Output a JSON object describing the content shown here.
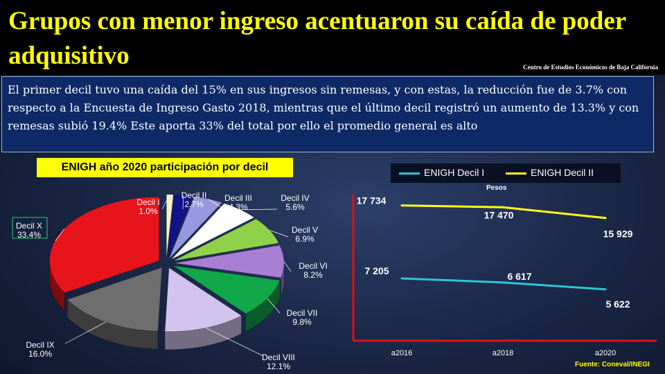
{
  "slide": {
    "title": "Grupos con menor ingreso acentuaron su caída de poder adquisitivo",
    "organization": "Centro de Estudios  Económicos  de  Baja California",
    "summary": "El primer decil tuvo una caída del 15% en sus ingresos sin remesas, y con estas, la reducción fue de 3.7% con respecto a la Encuesta de Ingreso Gasto 2018, mientras que el último decil registró un aumento de 13.3% y con remesas subió 19.4% Este aporta 33% del total por ello el promedio general es alto",
    "source": "Fuente:  Coneval/INEGI"
  },
  "chart_data": [
    {
      "type": "pie",
      "title": "ENIGH año 2020 participación por decil",
      "categories": [
        "Decil I",
        "Decil II",
        "Decil III",
        "Decil IV",
        "Decil V",
        "Decil VI",
        "Decil VII",
        "Decil VIII",
        "Decil IX",
        "Decil X"
      ],
      "values": [
        1.0,
        2.7,
        4.3,
        5.6,
        6.9,
        8.2,
        9.8,
        12.1,
        16.0,
        33.4
      ],
      "value_labels": [
        "1.0%",
        "2.7%",
        "4.3%",
        "5.6%",
        "6.9%",
        "8.2%",
        "9.8%",
        "12.1%",
        "16.0%",
        "33.4%"
      ],
      "colors": [
        "#f4f0c8",
        "#12128a",
        "#9898e0",
        "#ffffff",
        "#8fd24a",
        "#a97fd6",
        "#11a84a",
        "#d2c4ee",
        "#6e6e6e",
        "#e8141c"
      ],
      "exploded": true,
      "three_d": true
    },
    {
      "type": "line",
      "ylabel": "Pesos",
      "categories": [
        "a2016",
        "a2018",
        "a2020"
      ],
      "series": [
        {
          "name": "ENIGH Decil I",
          "values": [
            7205,
            6617,
            5622
          ],
          "value_labels": [
            "7 205",
            "6 617",
            "5 622"
          ],
          "color": "#2ec6d0"
        },
        {
          "name": "ENIGH Decil II",
          "values": [
            17734,
            17470,
            15929
          ],
          "value_labels": [
            "17 734",
            "17 470",
            "15 929"
          ],
          "color": "#ffff1a"
        }
      ],
      "axis_color": "#e01010",
      "grid": false,
      "legend_position": "top"
    }
  ]
}
